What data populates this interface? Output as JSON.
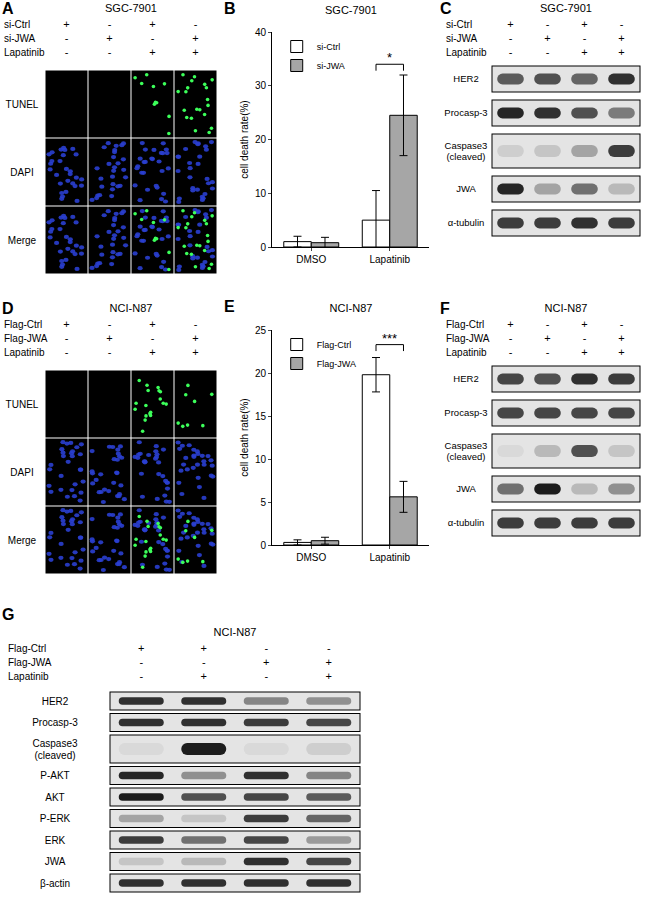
{
  "chart_data": [
    {
      "panel_label": "B",
      "type": "bar",
      "title": "SGC-7901",
      "y_label": "cell death rate(%)",
      "categories": [
        "DMSO",
        "Lapatinib"
      ],
      "series": [
        {
          "name": "si-Ctrl",
          "color": "#ffffff",
          "values": [
            1,
            5
          ],
          "errors": [
            1,
            5.5
          ]
        },
        {
          "name": "si-JWA",
          "color": "#a6a6a6",
          "values": [
            0.8,
            24.5
          ],
          "errors": [
            1,
            7.5
          ]
        }
      ],
      "ylim": [
        0,
        40
      ],
      "yticks": [
        0,
        10,
        20,
        30,
        40
      ],
      "legend": "top left",
      "significance": [
        {
          "category": "Lapatinib",
          "text": "*",
          "y": 34
        }
      ]
    },
    {
      "panel_label": "E",
      "type": "bar",
      "title": "NCI-N87",
      "y_label": "cell death rate(%)",
      "categories": [
        "DMSO",
        "Lapatinib"
      ],
      "series": [
        {
          "name": "Flag-Ctrl",
          "color": "#ffffff",
          "values": [
            0.3,
            19.8
          ],
          "errors": [
            0.3,
            2
          ]
        },
        {
          "name": "Flag-JWA",
          "color": "#a6a6a6",
          "values": [
            0.5,
            5.6
          ],
          "errors": [
            0.4,
            1.8
          ]
        }
      ],
      "ylim": [
        0,
        25
      ],
      "yticks": [
        0,
        5,
        10,
        15,
        20,
        25
      ],
      "legend": "top left",
      "significance": [
        {
          "category": "Lapatinib",
          "text": "***",
          "y": 23.3
        }
      ]
    }
  ],
  "panels": [
    {
      "panel_label": "A",
      "type": "micrographs",
      "title": "SGC-7901",
      "conditions": [
        {
          "name": "si-Ctrl",
          "signs": [
            "+",
            "-",
            "+",
            "-"
          ]
        },
        {
          "name": "si-JWA",
          "signs": [
            "-",
            "+",
            "-",
            "+"
          ]
        },
        {
          "name": "Lapatinib",
          "signs": [
            "-",
            "-",
            "+",
            "+"
          ]
        }
      ],
      "rows": [
        "TUNEL",
        "DAPI",
        "Merge"
      ],
      "tunel_positive": [
        0,
        0,
        10,
        20
      ]
    },
    {
      "panel_label": "C",
      "type": "western_blot",
      "title": "SGC-7901",
      "conditions": [
        {
          "name": "si-Ctrl",
          "signs": [
            "+",
            "-",
            "+",
            "-"
          ]
        },
        {
          "name": "si-JWA",
          "signs": [
            "-",
            "+",
            "-",
            "+"
          ]
        },
        {
          "name": "Lapatinib",
          "signs": [
            "-",
            "-",
            "+",
            "+"
          ]
        }
      ],
      "rows": [
        {
          "label": "HER2",
          "intensity": [
            0.65,
            0.7,
            0.6,
            0.85
          ]
        },
        {
          "label": "Procasp-3",
          "intensity": [
            0.9,
            0.85,
            0.7,
            0.5
          ]
        },
        {
          "label": "Caspase3 (cleaved)",
          "intensity": [
            0.1,
            0.15,
            0.3,
            0.8
          ]
        },
        {
          "label": "JWA",
          "intensity": [
            0.9,
            0.3,
            0.55,
            0.2
          ]
        },
        {
          "label": "α-tubulin",
          "intensity": [
            0.8,
            0.8,
            0.85,
            0.8
          ]
        }
      ]
    },
    {
      "panel_label": "D",
      "type": "micrographs",
      "title": "NCI-N87",
      "conditions": [
        {
          "name": "Flag-Ctrl",
          "signs": [
            "+",
            "-",
            "+",
            "-"
          ]
        },
        {
          "name": "Flag-JWA",
          "signs": [
            "-",
            "+",
            "-",
            "+"
          ]
        },
        {
          "name": "Lapatinib",
          "signs": [
            "-",
            "-",
            "+",
            "+"
          ]
        }
      ],
      "rows": [
        "TUNEL",
        "DAPI",
        "Merge"
      ],
      "tunel_positive": [
        0,
        0,
        18,
        8
      ]
    },
    {
      "panel_label": "F",
      "type": "western_blot",
      "title": "NCI-N87",
      "conditions": [
        {
          "name": "Flag-Ctrl",
          "signs": [
            "+",
            "-",
            "+",
            "-"
          ]
        },
        {
          "name": "Flag-JWA",
          "signs": [
            "-",
            "+",
            "-",
            "+"
          ]
        },
        {
          "name": "Lapatinib",
          "signs": [
            "-",
            "-",
            "+",
            "+"
          ]
        }
      ],
      "rows": [
        {
          "label": "HER2",
          "intensity": [
            0.75,
            0.7,
            0.85,
            0.8
          ]
        },
        {
          "label": "Procasp-3",
          "intensity": [
            0.75,
            0.75,
            0.75,
            0.75
          ]
        },
        {
          "label": "Caspase3 (cleaved)",
          "intensity": [
            0.05,
            0.2,
            0.7,
            0.15
          ]
        },
        {
          "label": "JWA",
          "intensity": [
            0.55,
            0.95,
            0.2,
            0.4
          ]
        },
        {
          "label": "α-tubulin",
          "intensity": [
            0.8,
            0.8,
            0.8,
            0.8
          ]
        }
      ]
    },
    {
      "panel_label": "G",
      "type": "western_blot",
      "title": "NCI-N87",
      "conditions": [
        {
          "name": "Flag-Ctrl",
          "signs": [
            "+",
            "+",
            "-",
            "-"
          ]
        },
        {
          "name": "Flag-JWA",
          "signs": [
            "-",
            "-",
            "+",
            "+"
          ]
        },
        {
          "name": "Lapatinib",
          "signs": [
            "-",
            "+",
            "-",
            "+"
          ]
        }
      ],
      "rows": [
        {
          "label": "HER2",
          "intensity": [
            0.85,
            0.85,
            0.45,
            0.4
          ]
        },
        {
          "label": "Procasp-3",
          "intensity": [
            0.85,
            0.85,
            0.8,
            0.75
          ]
        },
        {
          "label": "Caspase3 (cleaved)",
          "intensity": [
            0.05,
            0.95,
            0.05,
            0.1
          ]
        },
        {
          "label": "P-AKT",
          "intensity": [
            0.9,
            0.4,
            0.85,
            0.45
          ]
        },
        {
          "label": "AKT",
          "intensity": [
            0.95,
            0.7,
            0.75,
            0.65
          ]
        },
        {
          "label": "P-ERK",
          "intensity": [
            0.3,
            0.15,
            0.8,
            0.6
          ]
        },
        {
          "label": "ERK",
          "intensity": [
            0.8,
            0.55,
            0.75,
            0.35
          ]
        },
        {
          "label": "JWA",
          "intensity": [
            0.15,
            0.2,
            0.85,
            0.75
          ]
        },
        {
          "label": "β-actin",
          "intensity": [
            0.85,
            0.85,
            0.85,
            0.85
          ]
        }
      ]
    }
  ]
}
